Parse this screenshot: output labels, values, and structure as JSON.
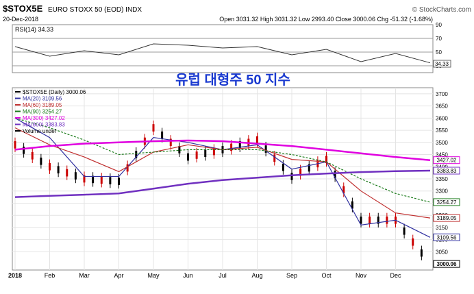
{
  "header": {
    "symbol": "$STOX5E",
    "name": "EURO STOXX 50 (EOD) INDX",
    "watermark": "© StockCharts.com",
    "date": "20-Dec-2018",
    "ohlc": "Open 3031.32  High 3031.32  Low 2993.40  Close 3000.06  Chg -51.32 (-1.68%)"
  },
  "overlay_title": "유럽 대형주 50 지수",
  "chart_data": [
    {
      "type": "line",
      "title": "RSI(14) 34.33",
      "series_name": "RSI(14)",
      "last_value": 34.33,
      "last_value_label": "34.33",
      "ylim": [
        20,
        90
      ],
      "yticks": [
        90,
        70,
        50,
        30
      ],
      "reference_lines": [
        70,
        50,
        30
      ],
      "x": [
        "Jan",
        "Feb",
        "Mar",
        "Apr",
        "May",
        "Jun",
        "Jul",
        "Aug",
        "Sep",
        "Oct",
        "Nov",
        "Dec",
        "Dec-20"
      ],
      "values": [
        58,
        44,
        52,
        46,
        62,
        60,
        56,
        58,
        46,
        54,
        36,
        48,
        34.33
      ],
      "grid": true
    },
    {
      "type": "line",
      "title": "$STOX5E (Daily) 3000.06",
      "ylim": [
        2975,
        3725
      ],
      "yticks": [
        3700,
        3650,
        3600,
        3550,
        3500,
        3450,
        3400,
        3350,
        3300,
        3250,
        3200,
        3150,
        3100,
        3050
      ],
      "month_labels": [
        "2018",
        "Feb",
        "Mar",
        "Apr",
        "May",
        "Jun",
        "Jul",
        "Aug",
        "Sep",
        "Oct",
        "Nov",
        "Dec"
      ],
      "x": [
        "Jan",
        "Feb",
        "Mar",
        "Apr",
        "May",
        "Jun",
        "Jul",
        "Aug",
        "Sep",
        "Oct",
        "Nov",
        "Dec",
        "Dec-20"
      ],
      "grid": true,
      "legend_position": "top-left",
      "legend": [
        {
          "label": "$STOX5E (Daily) 3000.06",
          "color": "#000000"
        },
        {
          "label": "MA(20) 3109.56",
          "color": "#3030a0"
        },
        {
          "label": "MA(60) 3189.05",
          "color": "#c03030"
        },
        {
          "label": "MA(90) 3254.27",
          "color": "#1a7a1a"
        },
        {
          "label": "MA(300) 3427.02",
          "color": "#e000e0"
        },
        {
          "label": "MA(600) 3383.83",
          "color": "#7030c0"
        },
        {
          "label": "Volume undef",
          "color": "#000000"
        }
      ],
      "price": [
        3490,
        3400,
        3350,
        3340,
        3560,
        3440,
        3470,
        3510,
        3360,
        3430,
        3180,
        3180,
        3000.06
      ],
      "series": [
        {
          "name": "MA(20)",
          "color": "#3030a0",
          "values": [
            3600,
            3520,
            3360,
            3360,
            3520,
            3500,
            3470,
            3490,
            3390,
            3420,
            3160,
            3180,
            3109.56
          ],
          "last_label": "3109.56"
        },
        {
          "name": "MA(60)",
          "color": "#c03030",
          "values": [
            3560,
            3490,
            3440,
            3380,
            3460,
            3490,
            3470,
            3480,
            3430,
            3420,
            3300,
            3210,
            3189.05
          ],
          "last_label": "3189.05"
        },
        {
          "name": "MA(90)",
          "color": "#1a7a1a",
          "values": [
            3600,
            3560,
            3510,
            3450,
            3460,
            3470,
            3470,
            3470,
            3450,
            3420,
            3350,
            3290,
            3254.27
          ],
          "last_label": "3254.27"
        },
        {
          "name": "MA(300)",
          "color": "#e000e0",
          "values": [
            3470,
            3485,
            3495,
            3500,
            3505,
            3508,
            3505,
            3495,
            3485,
            3470,
            3455,
            3440,
            3427.02
          ],
          "last_label": "3427.02"
        },
        {
          "name": "MA(600)",
          "color": "#7030c0",
          "values": [
            3275,
            3280,
            3285,
            3290,
            3310,
            3330,
            3345,
            3355,
            3365,
            3372,
            3378,
            3382,
            3383.83
          ],
          "last_label": "3383.83"
        }
      ],
      "last_price_label": "3000.06"
    }
  ]
}
